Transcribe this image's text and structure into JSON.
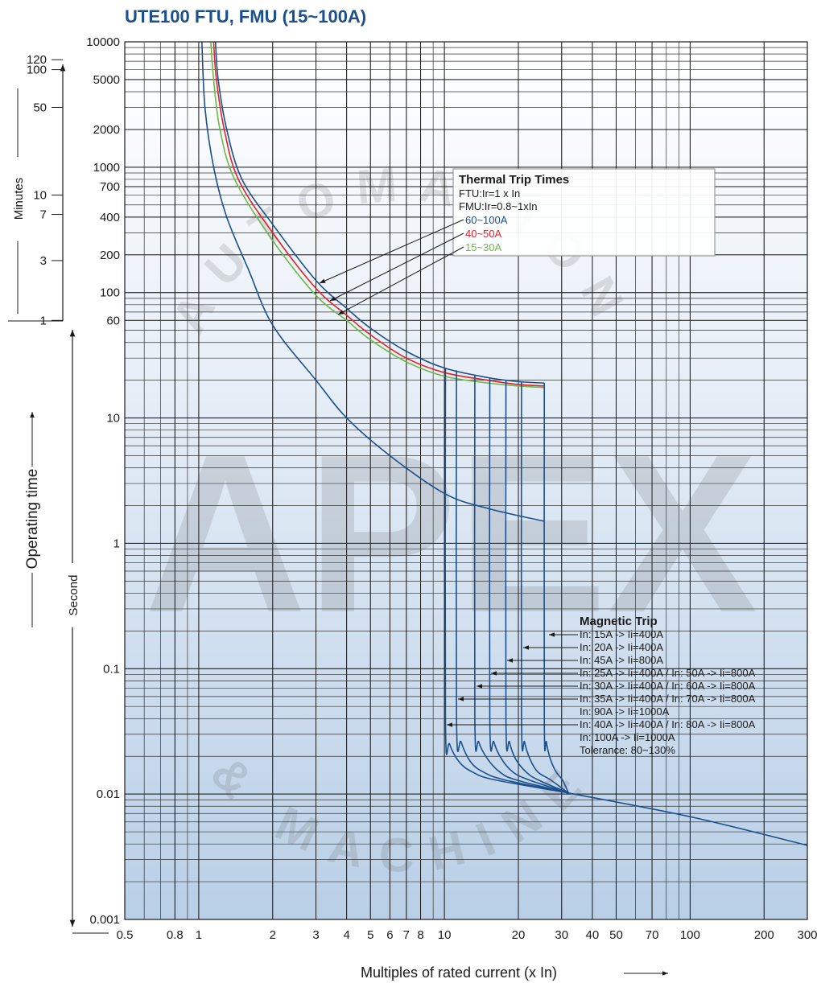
{
  "chart_data": {
    "type": "line",
    "title": "UTE100 FTU, FMU (15~100A)",
    "x_label": "Multiples of rated current (x In)",
    "y_label": "Operating time",
    "y_unit_label": "Second",
    "minutes_label": "Minutes",
    "log_x": true,
    "log_y": true,
    "grid": true,
    "xlim": [
      0.5,
      300
    ],
    "ylim": [
      0.001,
      10000
    ],
    "xticks": [
      0.5,
      0.8,
      1,
      2,
      3,
      4,
      5,
      6,
      7,
      8,
      10,
      20,
      30,
      40,
      50,
      70,
      100,
      200,
      300
    ],
    "yticks": [
      0.001,
      0.01,
      0.1,
      1,
      10,
      60,
      100,
      200,
      400,
      700,
      1000,
      2000,
      5000,
      10000
    ],
    "minutes_ticks": [
      {
        "value": 7200,
        "label": "120"
      },
      {
        "value": 6000,
        "label": "100"
      },
      {
        "value": 3000,
        "label": "50"
      },
      {
        "value": 600,
        "label": "10"
      },
      {
        "value": 420,
        "label": "7"
      },
      {
        "value": 180,
        "label": "3"
      },
      {
        "value": 60,
        "label": "1"
      }
    ],
    "series": [
      {
        "name": "60~100A",
        "color": "#1b4f8e",
        "x": [
          1.17,
          1.2,
          1.3,
          1.5,
          2,
          3,
          4,
          5,
          7,
          10,
          15,
          20,
          25.5
        ],
        "values": [
          10000,
          5000,
          2000,
          800,
          350,
          125,
          75,
          52,
          34,
          25,
          21,
          19.5,
          19
        ]
      },
      {
        "name": "40~50A",
        "color": "#e3222b",
        "x": [
          1.15,
          1.18,
          1.27,
          1.45,
          2,
          3,
          4,
          5,
          7,
          10,
          15,
          20,
          25.5
        ],
        "values": [
          10000,
          5000,
          2000,
          800,
          300,
          108,
          66,
          46,
          30,
          23,
          20,
          18.5,
          18
        ]
      },
      {
        "name": "15~30A",
        "color": "#6cb945",
        "x": [
          1.12,
          1.15,
          1.22,
          1.4,
          2,
          3,
          4,
          5,
          7,
          10,
          15,
          20,
          25.5
        ],
        "values": [
          10000,
          5000,
          2000,
          800,
          260,
          95,
          60,
          42,
          28,
          21.5,
          19,
          18,
          17.5
        ]
      },
      {
        "color": "#1b4f8e",
        "x": [
          1.03,
          1.06,
          1.15,
          1.3,
          1.6,
          2,
          3,
          4,
          6,
          10,
          15,
          25.5
        ],
        "values": [
          10000,
          3000,
          1000,
          400,
          150,
          55,
          20,
          10,
          5,
          2.5,
          1.9,
          1.5
        ]
      },
      {
        "color": "#1b4f8e",
        "x": [
          10.1,
          10.1,
          10.5,
          11.5,
          13,
          16,
          32
        ],
        "values": [
          25,
          0.038,
          0.025,
          0.018,
          0.015,
          0.013,
          0.0102
        ]
      },
      {
        "color": "#1b4f8e",
        "x": [
          11.2,
          11.2,
          11.7,
          12.8,
          14.4,
          17.5,
          32
        ],
        "values": [
          24,
          0.04,
          0.026,
          0.018,
          0.015,
          0.013,
          0.0102
        ]
      },
      {
        "color": "#1b4f8e",
        "x": [
          13.3,
          13.3,
          13.8,
          15,
          16.8,
          19.5,
          32
        ],
        "values": [
          22,
          0.04,
          0.026,
          0.019,
          0.015,
          0.013,
          0.0102
        ]
      },
      {
        "color": "#1b4f8e",
        "x": [
          15.3,
          15.3,
          15.9,
          17.1,
          19,
          22,
          32
        ],
        "values": [
          21,
          0.04,
          0.026,
          0.019,
          0.015,
          0.013,
          0.0102
        ]
      },
      {
        "color": "#1b4f8e",
        "x": [
          17.8,
          17.8,
          18.4,
          19.5,
          21.5,
          24,
          32
        ],
        "values": [
          20,
          0.04,
          0.026,
          0.019,
          0.015,
          0.013,
          0.0102
        ]
      },
      {
        "color": "#1b4f8e",
        "x": [
          20.6,
          20.6,
          21.2,
          22.3,
          24,
          27,
          32
        ],
        "values": [
          19.5,
          0.04,
          0.026,
          0.019,
          0.015,
          0.013,
          0.0102
        ]
      },
      {
        "color": "#1b4f8e",
        "x": [
          25.5,
          25.5,
          26,
          27,
          28.5,
          30.2,
          32
        ],
        "values": [
          19,
          0.04,
          0.026,
          0.019,
          0.015,
          0.013,
          0.0102
        ]
      },
      {
        "color": "#1b4f8e",
        "x": [
          32,
          100,
          300
        ],
        "values": [
          0.0102,
          0.0066,
          0.0039
        ]
      }
    ],
    "annotations": {
      "thermal": {
        "title": "Thermal Trip Times",
        "lines": [
          "FTU:Ir=1 x In",
          "FMU:Ir=0.8~1xIn"
        ]
      },
      "magnetic": {
        "title": "Magnetic Trip",
        "lines": [
          "In: 15A -> Ii=400A",
          "In: 20A -> Ii=400A",
          "In: 45A -> Ii=800A",
          "In: 25A -> Ii=400A / In: 50A -> Ii=800A",
          "In: 30A -> Ii=400A / In: 60A -> Ii=800A",
          "In: 35A -> Ii=400A / In: 70A -> Ii=800A",
          "In: 90A -> Ii=1000A",
          "In: 40A -> Ii=400A / In: 80A -> Ii=800A",
          "In: 100A -> Ii=1000A",
          "Tolerance: 80~130%"
        ]
      }
    },
    "watermark": {
      "brand": "APEX",
      "top": "AUTOMATION",
      "bottom": "& MACHINE"
    }
  }
}
